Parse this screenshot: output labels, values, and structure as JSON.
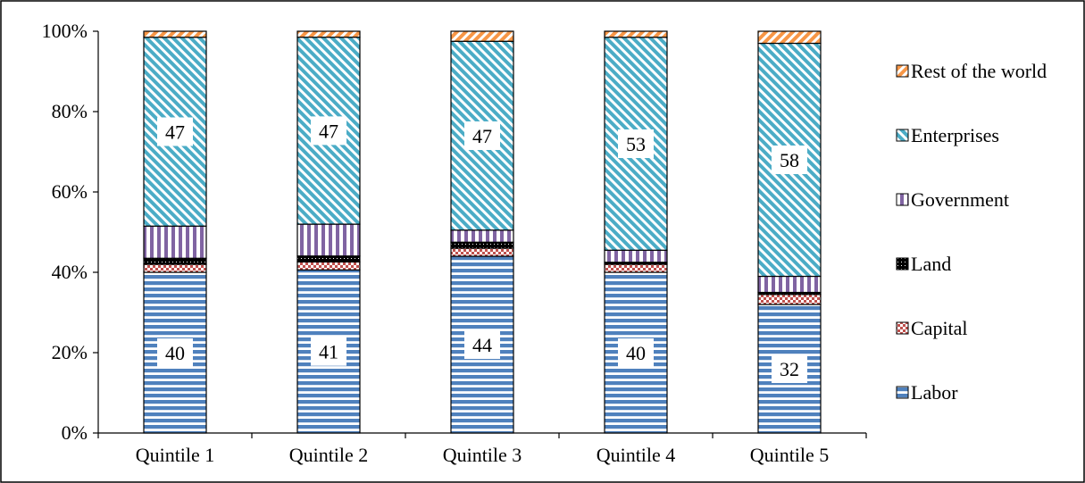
{
  "chart_data": {
    "type": "bar",
    "stacked": true,
    "percent_stacked": true,
    "title": "",
    "xlabel": "",
    "ylabel": "",
    "categories": [
      "Quintile 1",
      "Quintile 2",
      "Quintile 3",
      "Quintile 4",
      "Quintile 5"
    ],
    "ylim": [
      0,
      100
    ],
    "yticks": [
      "0%",
      "20%",
      "40%",
      "60%",
      "80%",
      "100%"
    ],
    "grid": false,
    "legend_position": "right",
    "series": [
      {
        "name": "Labor",
        "values": [
          40,
          41,
          44,
          40,
          32
        ],
        "color": "#4f81bd",
        "pattern": "horizontal-stripes",
        "labels": [
          "40",
          "41",
          "44",
          "40",
          "32"
        ]
      },
      {
        "name": "Capital",
        "values": [
          2,
          2,
          2,
          2,
          2.5
        ],
        "color": "#c0504d",
        "pattern": "checker"
      },
      {
        "name": "Land",
        "values": [
          1.5,
          1.5,
          1.5,
          0.5,
          0.5
        ],
        "color": "#000000",
        "pattern": "solid-dots"
      },
      {
        "name": "Government",
        "values": [
          8,
          8,
          3,
          3,
          4
        ],
        "color": "#8064a2",
        "pattern": "vertical-stripes"
      },
      {
        "name": "Enterprises",
        "values": [
          47,
          47,
          47,
          53,
          58
        ],
        "color": "#4bacc6",
        "pattern": "diagonal-stripes",
        "labels": [
          "47",
          "47",
          "47",
          "53",
          "58"
        ]
      },
      {
        "name": "Rest of the world",
        "values": [
          1.5,
          1.5,
          2.5,
          1.5,
          3
        ],
        "color": "#f79646",
        "pattern": "diagonal-stripes-reverse"
      }
    ]
  }
}
